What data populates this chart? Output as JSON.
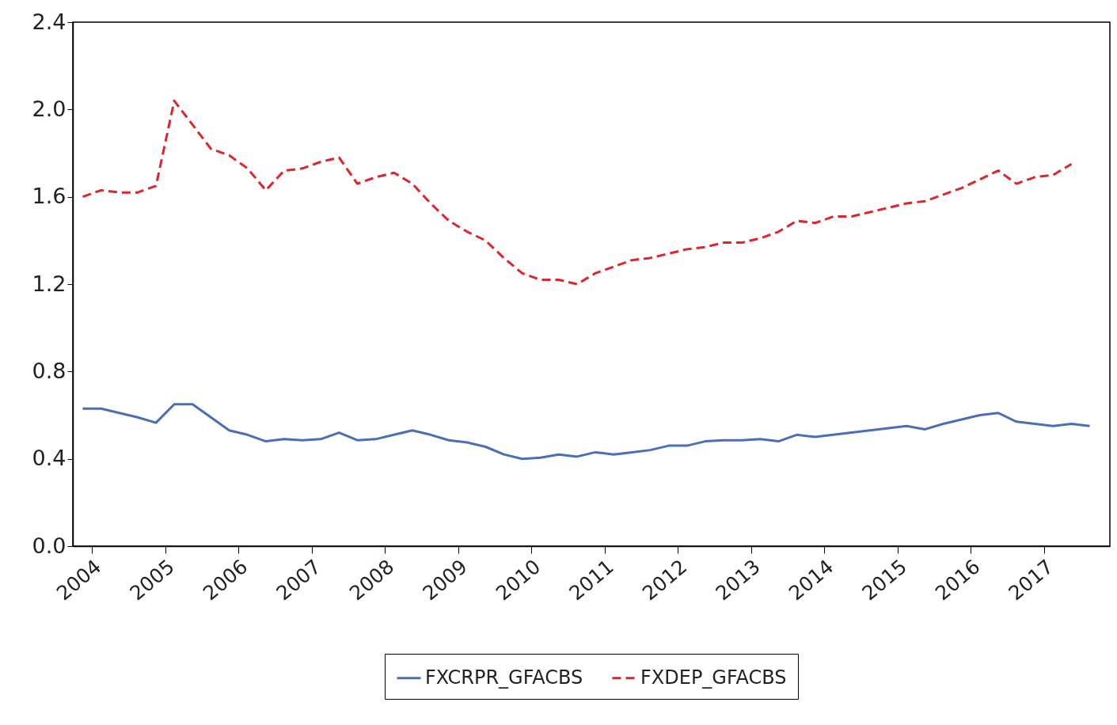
{
  "chart_data": {
    "type": "line",
    "x": [
      2003.875,
      2004.125,
      2004.375,
      2004.625,
      2004.875,
      2005.125,
      2005.375,
      2005.625,
      2005.875,
      2006.125,
      2006.375,
      2006.625,
      2006.875,
      2007.125,
      2007.375,
      2007.625,
      2007.875,
      2008.125,
      2008.375,
      2008.625,
      2008.875,
      2009.125,
      2009.375,
      2009.625,
      2009.875,
      2010.125,
      2010.375,
      2010.625,
      2010.875,
      2011.125,
      2011.375,
      2011.625,
      2011.875,
      2012.125,
      2012.375,
      2012.625,
      2012.875,
      2013.125,
      2013.375,
      2013.625,
      2013.875,
      2014.125,
      2014.375,
      2014.625,
      2014.875,
      2015.125,
      2015.375,
      2015.625,
      2015.875,
      2016.125,
      2016.375,
      2016.625,
      2016.875,
      2017.125,
      2017.375,
      2017.625
    ],
    "series": [
      {
        "name": "FXCRPR_GFACBS",
        "color": "#4a6fb5",
        "line_style": "solid",
        "values": [
          0.63,
          0.63,
          0.61,
          0.59,
          0.565,
          0.65,
          0.65,
          0.59,
          0.53,
          0.51,
          0.48,
          0.49,
          0.485,
          0.49,
          0.52,
          0.485,
          0.49,
          0.51,
          0.53,
          0.51,
          0.485,
          0.475,
          0.455,
          0.42,
          0.4,
          0.405,
          0.42,
          0.41,
          0.43,
          0.42,
          0.43,
          0.44,
          0.46,
          0.46,
          0.48,
          0.485,
          0.485,
          0.49,
          0.48,
          0.51,
          0.5,
          0.51,
          0.52,
          0.53,
          0.54,
          0.55,
          0.535,
          0.56,
          0.58,
          0.6,
          0.61,
          0.57,
          0.56,
          0.55,
          0.56,
          0.55
        ]
      },
      {
        "name": "FXDEP_GFACBS",
        "color": "#e0242b",
        "line_style": "dashed",
        "x": [
          2003.875,
          2004.125,
          2004.375,
          2004.625,
          2004.875,
          2005.125,
          2005.375,
          2005.625,
          2005.875,
          2006.125,
          2006.375,
          2006.625,
          2006.875,
          2007.125,
          2007.375,
          2007.625,
          2007.875,
          2008.125,
          2008.375,
          2008.625,
          2008.875,
          2009.125,
          2009.375,
          2009.625,
          2009.875,
          2010.125,
          2010.375,
          2010.625,
          2010.875,
          2011.125,
          2011.375,
          2011.625,
          2011.875,
          2012.125,
          2012.375,
          2012.625,
          2012.875,
          2013.125,
          2013.375,
          2013.625,
          2013.875,
          2014.125,
          2014.375,
          2014.625,
          2014.875,
          2015.125,
          2015.375,
          2015.625,
          2015.875,
          2016.125,
          2016.375,
          2016.625,
          2016.875,
          2017.125,
          2017.375
        ],
        "values": [
          1.6,
          1.63,
          1.62,
          1.62,
          1.65,
          2.04,
          1.93,
          1.82,
          1.79,
          1.73,
          1.63,
          1.72,
          1.73,
          1.76,
          1.78,
          1.66,
          1.69,
          1.71,
          1.66,
          1.57,
          1.49,
          1.44,
          1.4,
          1.32,
          1.25,
          1.22,
          1.22,
          1.2,
          1.25,
          1.28,
          1.31,
          1.32,
          1.34,
          1.36,
          1.37,
          1.39,
          1.39,
          1.41,
          1.44,
          1.49,
          1.48,
          1.51,
          1.51,
          1.53,
          1.55,
          1.57,
          1.58,
          1.61,
          1.64,
          1.68,
          1.72,
          1.66,
          1.69,
          1.7,
          1.75
        ]
      }
    ],
    "xlim": [
      2003.74,
      2017.9
    ],
    "xticks": [
      2004,
      2005,
      2006,
      2007,
      2008,
      2009,
      2010,
      2011,
      2012,
      2013,
      2014,
      2015,
      2016,
      2017
    ],
    "ylim": [
      0,
      2.4
    ],
    "yticks": [
      {
        "value": 0,
        "label": "0.0"
      },
      0.4,
      0.8,
      1.2,
      1.6,
      {
        "value": 2,
        "label": "2.0"
      },
      2.4
    ],
    "legend": "bottom",
    "grid": false,
    "marker": "none"
  }
}
